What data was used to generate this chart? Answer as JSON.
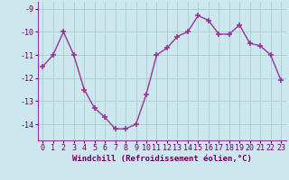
{
  "x": [
    0,
    1,
    2,
    3,
    4,
    5,
    6,
    7,
    8,
    9,
    10,
    11,
    12,
    13,
    14,
    15,
    16,
    17,
    18,
    19,
    20,
    21,
    22,
    23
  ],
  "y": [
    -11.5,
    -11.0,
    -10.0,
    -11.0,
    -12.5,
    -13.3,
    -13.7,
    -14.2,
    -14.2,
    -14.0,
    -12.7,
    -11.0,
    -10.7,
    -10.2,
    -10.0,
    -9.3,
    -9.5,
    -10.1,
    -10.1,
    -9.7,
    -10.5,
    -10.6,
    -11.0,
    -12.1
  ],
  "line_color": "#993399",
  "marker": "+",
  "markersize": 4,
  "markeredgewidth": 1.2,
  "linewidth": 1.0,
  "bg_color": "#cce8ee",
  "grid_color": "#aacccc",
  "xlabel": "Windchill (Refroidissement éolien,°C)",
  "xlabel_fontsize": 6.5,
  "tick_fontsize": 6,
  "ylim": [
    -14.7,
    -8.7
  ],
  "xlim": [
    -0.5,
    23.5
  ],
  "yticks": [
    -9,
    -10,
    -11,
    -12,
    -13,
    -14
  ],
  "xticks": [
    0,
    1,
    2,
    3,
    4,
    5,
    6,
    7,
    8,
    9,
    10,
    11,
    12,
    13,
    14,
    15,
    16,
    17,
    18,
    19,
    20,
    21,
    22,
    23
  ]
}
